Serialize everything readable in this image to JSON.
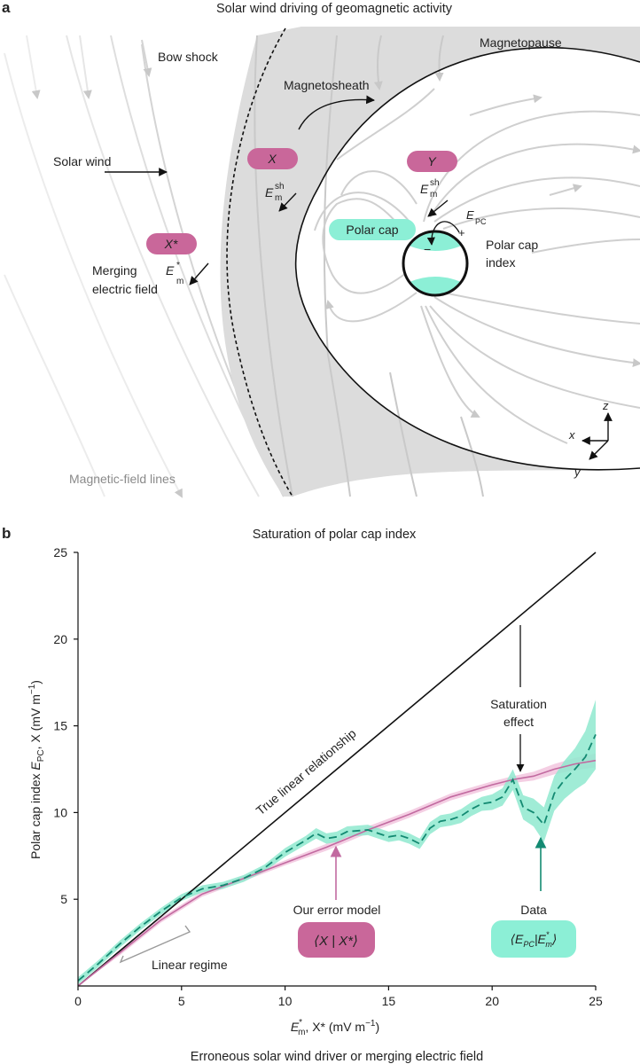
{
  "panel_a": {
    "letter": "a",
    "title": "Solar wind driving of geomagnetic activity",
    "labels": {
      "bow_shock": "Bow shock",
      "magnetopause": "Magnetopause",
      "magnetosheath": "Magnetosheath",
      "solar_wind": "Solar wind",
      "merging_field_line1": "Merging",
      "merging_field_line2": "electric field",
      "polar_cap": "Polar cap",
      "polar_cap_index_line1": "Polar cap",
      "polar_cap_index_line2": "index",
      "field_lines": "Magnetic-field lines"
    },
    "badges": {
      "x": "X",
      "y": "Y",
      "x_star": "X*"
    },
    "symbols": {
      "e": "E",
      "sh": "sh",
      "m": "m",
      "star": "*",
      "pc": "PC",
      "plus": "+",
      "minus": "−"
    },
    "axes": {
      "x": "x",
      "y": "y",
      "z": "z"
    },
    "colors": {
      "badge_pink": "#c9679a",
      "cap_cyan": "#8cefd6",
      "sheath_grey": "#dcdcdc",
      "field_line_grey": "#cfcfcf"
    }
  },
  "panel_b": {
    "letter": "b",
    "title": "Saturation of polar cap index",
    "ylabel_main": "Polar cap index ",
    "ylabel_e": "E",
    "ylabel_pc": "PC",
    "ylabel_rest": ", X (mV m",
    "ylabel_exp": "−1",
    "ylabel_close": ")",
    "xlabel_e": "E",
    "xlabel_star": "*",
    "xlabel_m": "m",
    "xlabel_rest": ", X* (mV m",
    "xlabel_exp": "−1",
    "xlabel_close": ")",
    "caption": "Erroneous solar wind driver or merging electric field",
    "annotations": {
      "true_linear": "True linear relationship",
      "saturation_line1": "Saturation",
      "saturation_line2": "effect",
      "linear_regime": "Linear regime",
      "error_model": "Our error model",
      "error_model_badge": "⟨X | X*⟩",
      "data": "Data",
      "data_badge_open": "⟨E",
      "data_badge_pc": "PC",
      "data_badge_mid": "|E",
      "data_badge_star": "*",
      "data_badge_m": "m",
      "data_badge_close": "⟩"
    },
    "colors": {
      "model_line": "#c26aa0",
      "model_band": "#f2c6de",
      "data_line": "#138a72",
      "data_band": "#8fe9cf",
      "linear_line": "#111111",
      "regime_bracket": "#9a9a9a",
      "model_badge": "#c9679a",
      "data_badge": "#8cefd6"
    }
  },
  "chart_data": {
    "type": "line",
    "title": "Saturation of polar cap index",
    "xlabel": "E*m, X* (mV m−1)",
    "ylabel": "Polar cap index EPC, X (mV m−1)",
    "xlim": [
      0,
      25
    ],
    "ylim": [
      0,
      25
    ],
    "xticks": [
      0,
      5,
      10,
      15,
      20,
      25
    ],
    "yticks": [
      5,
      10,
      15,
      20,
      25
    ],
    "grid": false,
    "series": [
      {
        "name": "True linear relationship",
        "style": "solid",
        "x": [
          0,
          25
        ],
        "y": [
          0,
          25
        ]
      },
      {
        "name": "Our error model",
        "style": "solid",
        "x": [
          0,
          2,
          4,
          6,
          8,
          10,
          12,
          14,
          16,
          18,
          20,
          21,
          22,
          23,
          24,
          25
        ],
        "y": [
          0,
          1.9,
          3.8,
          5.3,
          6.2,
          7.1,
          8.0,
          9.0,
          9.9,
          10.9,
          11.6,
          11.9,
          12.1,
          12.5,
          12.8,
          13.0
        ],
        "band_halfwidth": [
          0,
          0.15,
          0.15,
          0.15,
          0.15,
          0.15,
          0.2,
          0.2,
          0.2,
          0.2,
          0.2,
          0.2,
          0.25,
          0.3,
          0.35,
          0.4
        ]
      },
      {
        "name": "Data",
        "style": "dashed",
        "x": [
          0,
          1,
          2,
          3,
          4,
          5,
          6,
          7,
          8,
          9,
          10,
          11,
          11.5,
          12,
          12.5,
          13,
          14,
          15,
          15.5,
          16,
          16.5,
          17,
          17.5,
          18,
          18.5,
          19,
          19.5,
          20,
          20.5,
          21,
          21.5,
          22,
          22.5,
          23,
          23.5,
          24,
          24.5,
          25
        ],
        "y": [
          0.3,
          1.3,
          2.4,
          3.4,
          4.3,
          5.1,
          5.6,
          5.8,
          6.2,
          6.8,
          7.7,
          8.4,
          8.8,
          8.5,
          8.6,
          8.9,
          9.0,
          8.6,
          8.7,
          8.5,
          8.2,
          9.1,
          9.5,
          9.6,
          9.8,
          10.2,
          10.5,
          10.6,
          10.9,
          11.9,
          10.3,
          10.0,
          9.3,
          11.1,
          11.9,
          12.5,
          13.2,
          14.5
        ],
        "band_halfwidth": [
          0.2,
          0.2,
          0.2,
          0.2,
          0.2,
          0.2,
          0.2,
          0.2,
          0.2,
          0.2,
          0.25,
          0.25,
          0.3,
          0.3,
          0.3,
          0.3,
          0.3,
          0.3,
          0.3,
          0.3,
          0.3,
          0.35,
          0.35,
          0.35,
          0.4,
          0.4,
          0.4,
          0.45,
          0.5,
          0.6,
          0.7,
          0.8,
          1.0,
          1.0,
          1.1,
          1.2,
          1.5,
          2.0
        ]
      }
    ],
    "legend": "none"
  }
}
